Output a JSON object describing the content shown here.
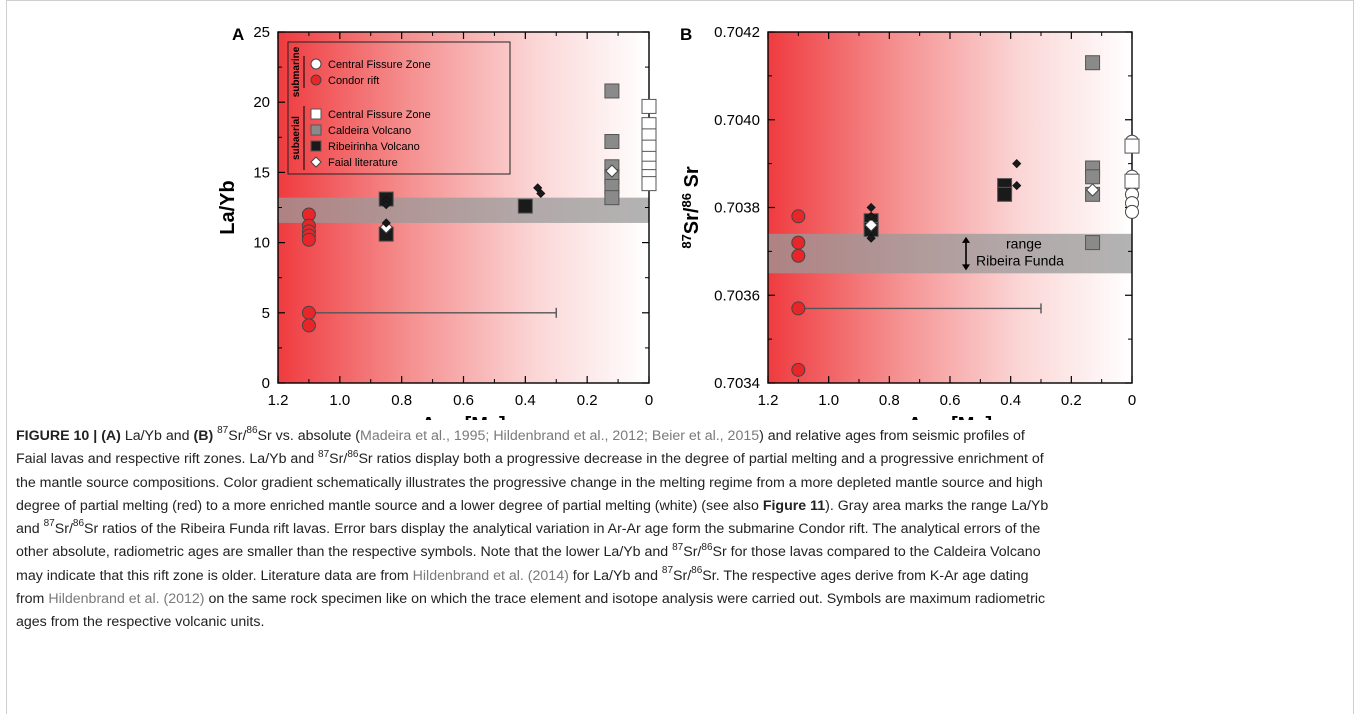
{
  "chart_data": [
    {
      "panel": "A",
      "type": "scatter",
      "xlabel": "Age [Ma]",
      "ylabel": "La/Yb",
      "xlim": [
        1.2,
        0
      ],
      "ylim": [
        0,
        25
      ],
      "x_ticks": [
        "1.2",
        "1.0",
        "0.8",
        "0.6",
        "0.4",
        "0.2",
        "0"
      ],
      "y_ticks": [
        "0",
        "5",
        "10",
        "15",
        "20",
        "25"
      ],
      "x_axis_reversed": true,
      "grid": false,
      "legend_position": "top-left",
      "background": "red (old) to white (young) gradient",
      "shaded_band": {
        "y_from": 11.4,
        "y_to": 13.2
      },
      "error_bar": {
        "x_from": 1.1,
        "x_to": 0.3,
        "y": 5.0
      },
      "series": [
        {
          "name": "Condor rift",
          "group": "submarine",
          "marker": "circle",
          "color": "#e8262a",
          "points": [
            [
              1.1,
              12.0
            ],
            [
              1.1,
              11.2
            ],
            [
              1.1,
              10.8
            ],
            [
              1.1,
              10.5
            ],
            [
              1.1,
              10.2
            ],
            [
              1.1,
              5.0
            ],
            [
              1.1,
              4.1
            ]
          ]
        },
        {
          "name": "Central Fissure Zone",
          "group": "submarine",
          "marker": "circle",
          "color": "#ffffff",
          "points": [
            [
              0.0,
              17.8
            ],
            [
              0.0,
              17.0
            ],
            [
              0.0,
              16.5
            ],
            [
              0.0,
              16.0
            ],
            [
              0.0,
              15.5
            ],
            [
              0.0,
              15.0
            ],
            [
              0.0,
              14.6
            ]
          ]
        },
        {
          "name": "Central Fissure Zone",
          "group": "subaerial",
          "marker": "square",
          "color": "#ffffff",
          "points": [
            [
              0.0,
              19.7
            ],
            [
              0.0,
              18.4
            ],
            [
              0.0,
              17.6
            ],
            [
              0.0,
              16.8
            ],
            [
              0.0,
              16.0
            ],
            [
              0.0,
              15.3
            ],
            [
              0.0,
              14.7
            ],
            [
              0.0,
              14.2
            ]
          ]
        },
        {
          "name": "Caldeira Volcano",
          "group": "subaerial",
          "marker": "square",
          "color": "#8a8a8a",
          "points": [
            [
              0.12,
              20.8
            ],
            [
              0.12,
              17.2
            ],
            [
              0.12,
              15.4
            ],
            [
              0.12,
              14.7
            ],
            [
              0.12,
              14.0
            ],
            [
              0.12,
              13.2
            ]
          ]
        },
        {
          "name": "Ribeirinha Volcano",
          "group": "subaerial",
          "marker": "square",
          "color": "#1a1a1a",
          "points": [
            [
              0.85,
              13.1
            ],
            [
              0.85,
              10.6
            ],
            [
              0.4,
              12.6
            ]
          ]
        },
        {
          "name": "Faial literature",
          "group": "subaerial",
          "marker": "diamond",
          "color": "#ffffff",
          "points": [
            [
              0.85,
              11.1
            ],
            [
              0.12,
              15.1
            ]
          ]
        },
        {
          "name": "Faial literature (filled)",
          "group": "subaerial",
          "marker": "diamond-small",
          "color": "#1a1a1a",
          "points": [
            [
              0.85,
              13.0
            ],
            [
              0.85,
              12.7
            ],
            [
              0.85,
              11.4
            ],
            [
              0.36,
              13.9
            ],
            [
              0.35,
              13.5
            ]
          ]
        }
      ]
    },
    {
      "panel": "B",
      "type": "scatter",
      "xlabel": "Age [Ma]",
      "ylabel": "87Sr/86Sr",
      "xlim": [
        1.2,
        0
      ],
      "ylim": [
        0.7034,
        0.7042
      ],
      "x_ticks": [
        "1.2",
        "1.0",
        "0.8",
        "0.6",
        "0.4",
        "0.2",
        "0"
      ],
      "y_ticks": [
        "0.7034",
        "0.7036",
        "0.7038",
        "0.7040",
        "0.7042"
      ],
      "x_axis_reversed": true,
      "grid": false,
      "background": "red (old) to white (young) gradient",
      "shaded_band": {
        "y_from": 0.70365,
        "y_to": 0.70374
      },
      "band_annotation": [
        "range",
        "Ribeira Funda"
      ],
      "error_bar": {
        "x_from": 1.1,
        "x_to": 0.3,
        "y": 0.70357
      },
      "series": [
        {
          "name": "Condor rift",
          "marker": "circle",
          "color": "#e8262a",
          "points": [
            [
              1.1,
              0.70378
            ],
            [
              1.1,
              0.70372
            ],
            [
              1.1,
              0.70369
            ],
            [
              1.1,
              0.70357
            ],
            [
              1.1,
              0.70343
            ]
          ]
        },
        {
          "name": "Central Fissure Zone",
          "marker": "circle",
          "color": "#ffffff",
          "points": [
            [
              0.0,
              0.70395
            ],
            [
              0.0,
              0.70387
            ],
            [
              0.0,
              0.70385
            ],
            [
              0.0,
              0.70383
            ],
            [
              0.0,
              0.70381
            ],
            [
              0.0,
              0.70379
            ]
          ]
        },
        {
          "name": "Central Fissure Zone",
          "marker": "square",
          "color": "#ffffff",
          "points": [
            [
              0.0,
              0.70394
            ],
            [
              0.0,
              0.70386
            ]
          ]
        },
        {
          "name": "Caldeira Volcano",
          "marker": "square",
          "color": "#8a8a8a",
          "points": [
            [
              0.13,
              0.70413
            ],
            [
              0.13,
              0.70389
            ],
            [
              0.13,
              0.70387
            ],
            [
              0.13,
              0.70383
            ],
            [
              0.13,
              0.70372
            ]
          ]
        },
        {
          "name": "Ribeirinha Volcano",
          "marker": "square",
          "color": "#1a1a1a",
          "points": [
            [
              0.86,
              0.70377
            ],
            [
              0.86,
              0.70375
            ],
            [
              0.42,
              0.70385
            ],
            [
              0.42,
              0.70383
            ]
          ]
        },
        {
          "name": "Faial literature",
          "marker": "diamond",
          "color": "#ffffff",
          "points": [
            [
              0.86,
              0.70376
            ],
            [
              0.13,
              0.70384
            ]
          ]
        },
        {
          "name": "Faial literature (filled)",
          "marker": "diamond-small",
          "color": "#1a1a1a",
          "points": [
            [
              0.86,
              0.7038
            ],
            [
              0.86,
              0.70378
            ],
            [
              0.86,
              0.70373
            ],
            [
              0.38,
              0.7039
            ],
            [
              0.38,
              0.70385
            ]
          ]
        }
      ]
    }
  ],
  "legend": {
    "group_submarine": "submarine",
    "group_subaerial": "subaerial",
    "items": [
      {
        "label": "Central Fissure Zone",
        "marker": "circle",
        "color": "#ffffff"
      },
      {
        "label": "Condor rift",
        "marker": "circle",
        "color": "#e8262a"
      },
      {
        "label": "Central Fissure Zone",
        "marker": "square",
        "color": "#ffffff"
      },
      {
        "label": "Caldeira Volcano",
        "marker": "square",
        "color": "#8a8a8a"
      },
      {
        "label": "Ribeirinha Volcano",
        "marker": "square",
        "color": "#1a1a1a"
      },
      {
        "label": "Faial literature",
        "marker": "diamond",
        "color": "#ffffff"
      }
    ]
  },
  "colors": {
    "accent_red": "#e8262a",
    "band_grey": "#9a9a9a",
    "axis": "#000000"
  },
  "caption": {
    "label": "FIGURE 10 | ",
    "lines": [
      [
        {
          "t": "(A)",
          "s": "lbl"
        },
        {
          "t": " La/Yb and "
        },
        {
          "t": "(B)",
          "s": "lbl"
        },
        {
          "t": " "
        },
        {
          "t": "87",
          "s": "sup"
        },
        {
          "t": "Sr/"
        },
        {
          "t": "86",
          "s": "sup"
        },
        {
          "t": "Sr vs. absolute ("
        },
        {
          "t": "Madeira et al., 1995; Hildenbrand et al., 2012; Beier et al., 2015",
          "s": "ref"
        },
        {
          "t": ") and relative ages from seismic profiles of"
        }
      ],
      [
        {
          "t": "Faial lavas and respective rift zones. La/Yb and "
        },
        {
          "t": "87",
          "s": "sup"
        },
        {
          "t": "Sr/"
        },
        {
          "t": "86",
          "s": "sup"
        },
        {
          "t": "Sr ratios display both a progressive decrease in the degree of partial melting and a progressive enrichment of"
        }
      ],
      [
        {
          "t": "the mantle source compositions. Color gradient schematically illustrates the progressive change in the melting regime from a more depleted mantle source and high"
        }
      ],
      [
        {
          "t": "degree of partial melting (red) to a more enriched mantle source and a lower degree of partial melting (white) (see also "
        },
        {
          "t": "Figure 11",
          "s": "lbl"
        },
        {
          "t": "). Gray area marks the range La/Yb"
        }
      ],
      [
        {
          "t": "and "
        },
        {
          "t": "87",
          "s": "sup"
        },
        {
          "t": "Sr/"
        },
        {
          "t": "86",
          "s": "sup"
        },
        {
          "t": "Sr ratios of the Ribeira Funda rift lavas. Error bars display the analytical variation in Ar-Ar age form the submarine Condor rift. The analytical errors of the"
        }
      ],
      [
        {
          "t": "other absolute, radiometric ages are smaller than the respective symbols. Note that the lower La/Yb and "
        },
        {
          "t": "87",
          "s": "sup"
        },
        {
          "t": "Sr/"
        },
        {
          "t": "86",
          "s": "sup"
        },
        {
          "t": "Sr for those lavas compared to the Caldeira Volcano"
        }
      ],
      [
        {
          "t": "may indicate that this rift zone is older. Literature data are from "
        },
        {
          "t": "Hildenbrand et al. (2014)",
          "s": "ref"
        },
        {
          "t": " for La/Yb and "
        },
        {
          "t": "87",
          "s": "sup"
        },
        {
          "t": "Sr/"
        },
        {
          "t": "86",
          "s": "sup"
        },
        {
          "t": "Sr. The respective ages derive from K-Ar age dating"
        }
      ],
      [
        {
          "t": "from "
        },
        {
          "t": "Hildenbrand et al. (2012)",
          "s": "ref"
        },
        {
          "t": " on the same rock specimen like on which the trace element and isotope analysis were carried out. Symbols are maximum radiometric"
        }
      ],
      [
        {
          "t": "ages from the respective volcanic units."
        }
      ]
    ]
  }
}
